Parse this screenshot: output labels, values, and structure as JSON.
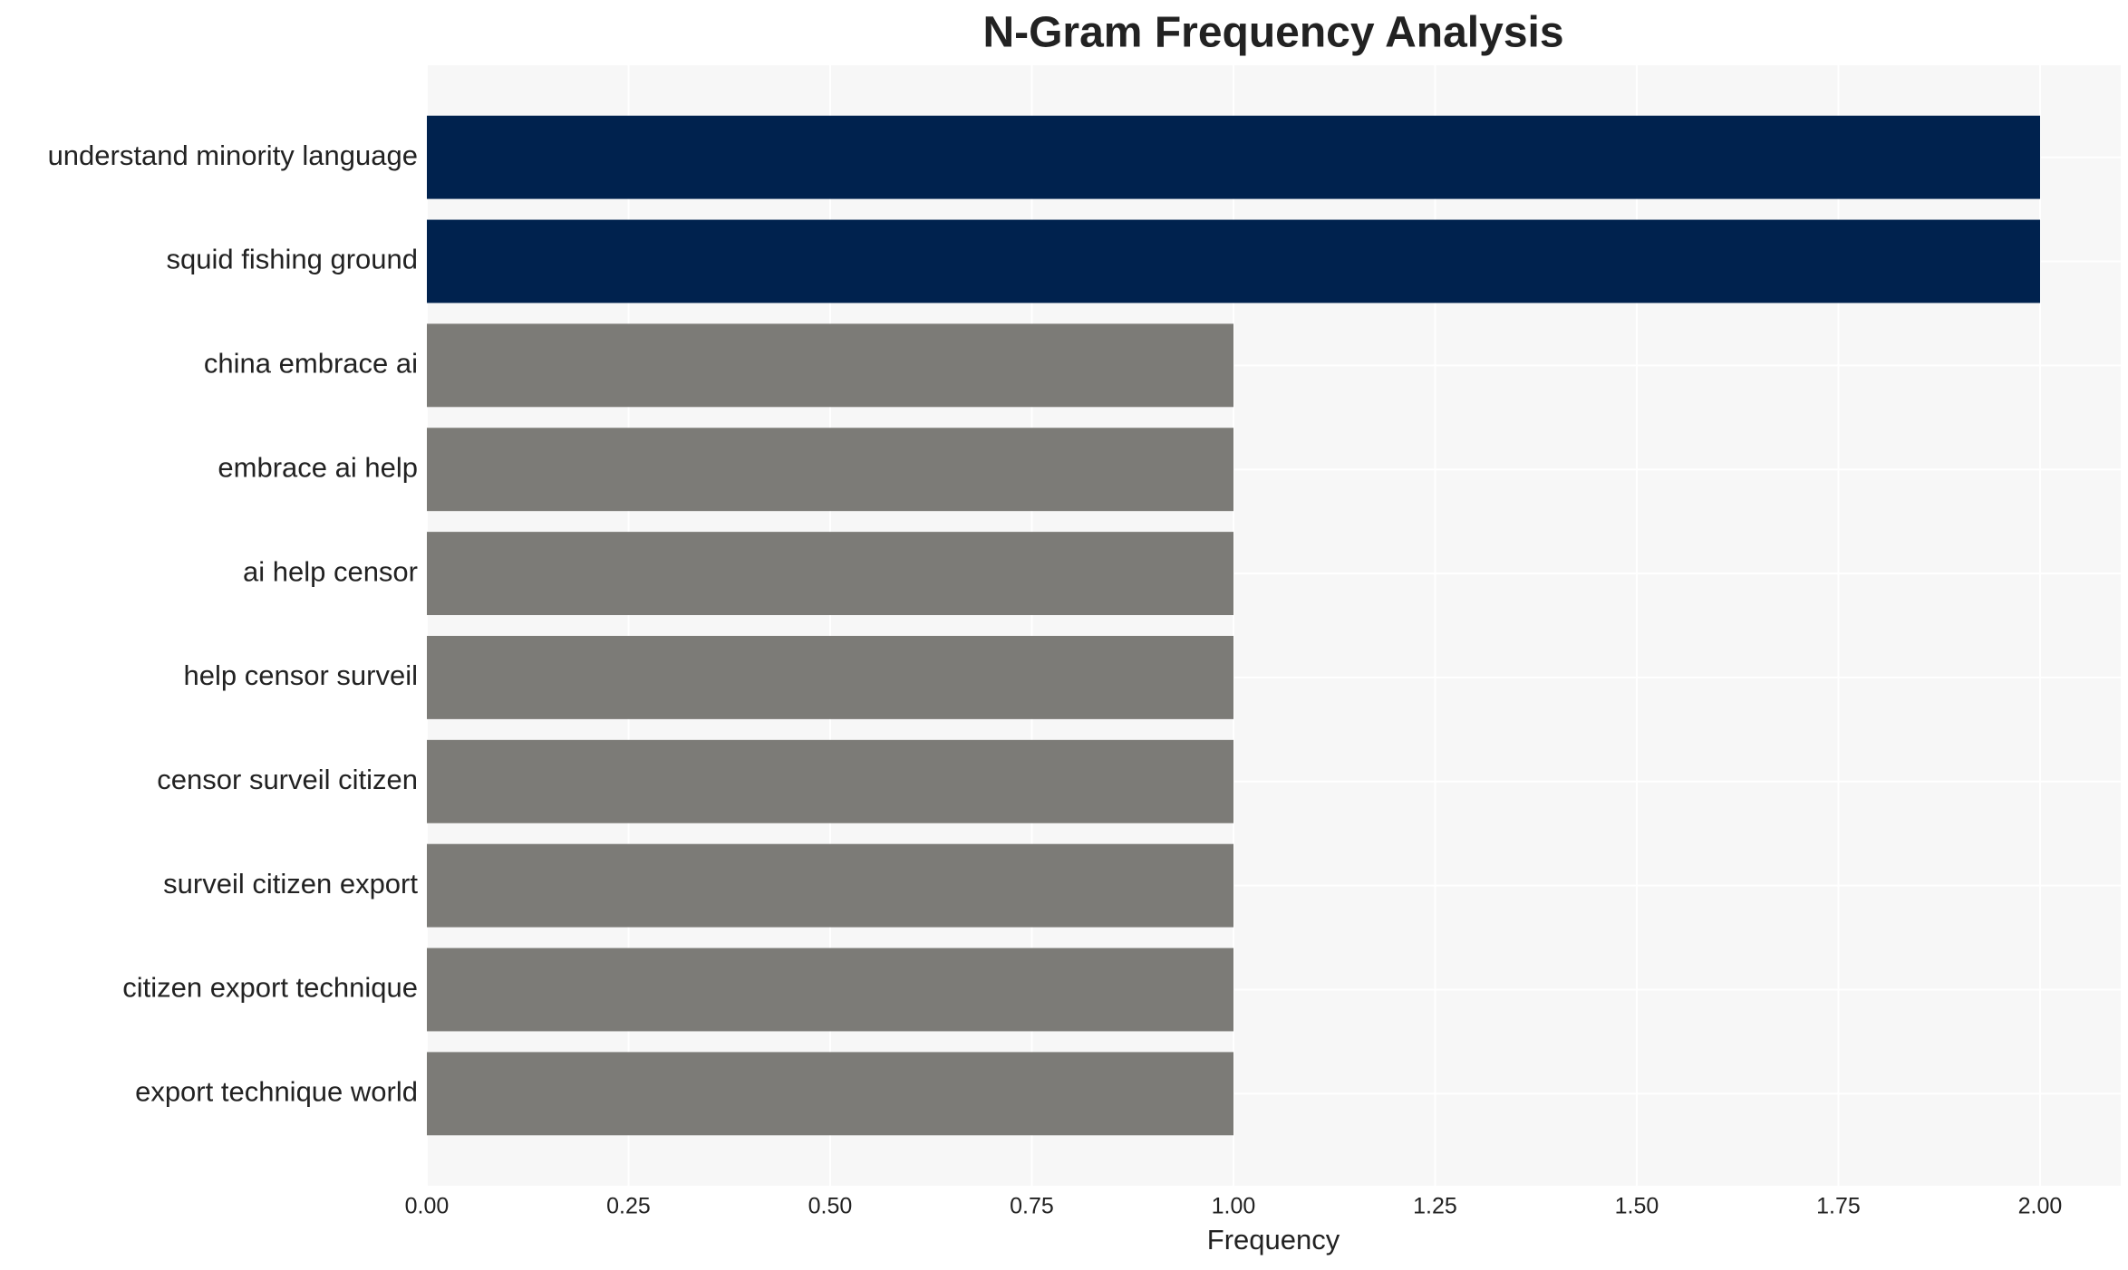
{
  "chart_data": {
    "type": "barh",
    "title": "N-Gram Frequency Analysis",
    "x_label": "Frequency",
    "categories": [
      "understand minority language",
      "squid fishing ground",
      "china embrace ai",
      "embrace ai help",
      "ai help censor",
      "help censor surveil",
      "censor surveil citizen",
      "surveil citizen export",
      "citizen export technique",
      "export technique world"
    ],
    "values": [
      2,
      2,
      1,
      1,
      1,
      1,
      1,
      1,
      1,
      1
    ],
    "colors": [
      "#00224e",
      "#00224e",
      "#7c7b77",
      "#7c7b77",
      "#7c7b77",
      "#7c7b77",
      "#7c7b77",
      "#7c7b77",
      "#7c7b77",
      "#7c7b77"
    ],
    "xlim": [
      0,
      2.1
    ],
    "xticks": [
      {
        "value": 0,
        "label": "0.00"
      },
      {
        "value": 0.25,
        "label": "0.25"
      },
      {
        "value": 0.5,
        "label": "0.50"
      },
      {
        "value": 0.75,
        "label": "0.75"
      },
      {
        "value": 1,
        "label": "1.00"
      },
      {
        "value": 1.25,
        "label": "1.25"
      },
      {
        "value": 1.5,
        "label": "1.50"
      },
      {
        "value": 1.75,
        "label": "1.75"
      },
      {
        "value": 2,
        "label": "2.00"
      }
    ],
    "grid": true,
    "background": "#f7f7f7"
  }
}
